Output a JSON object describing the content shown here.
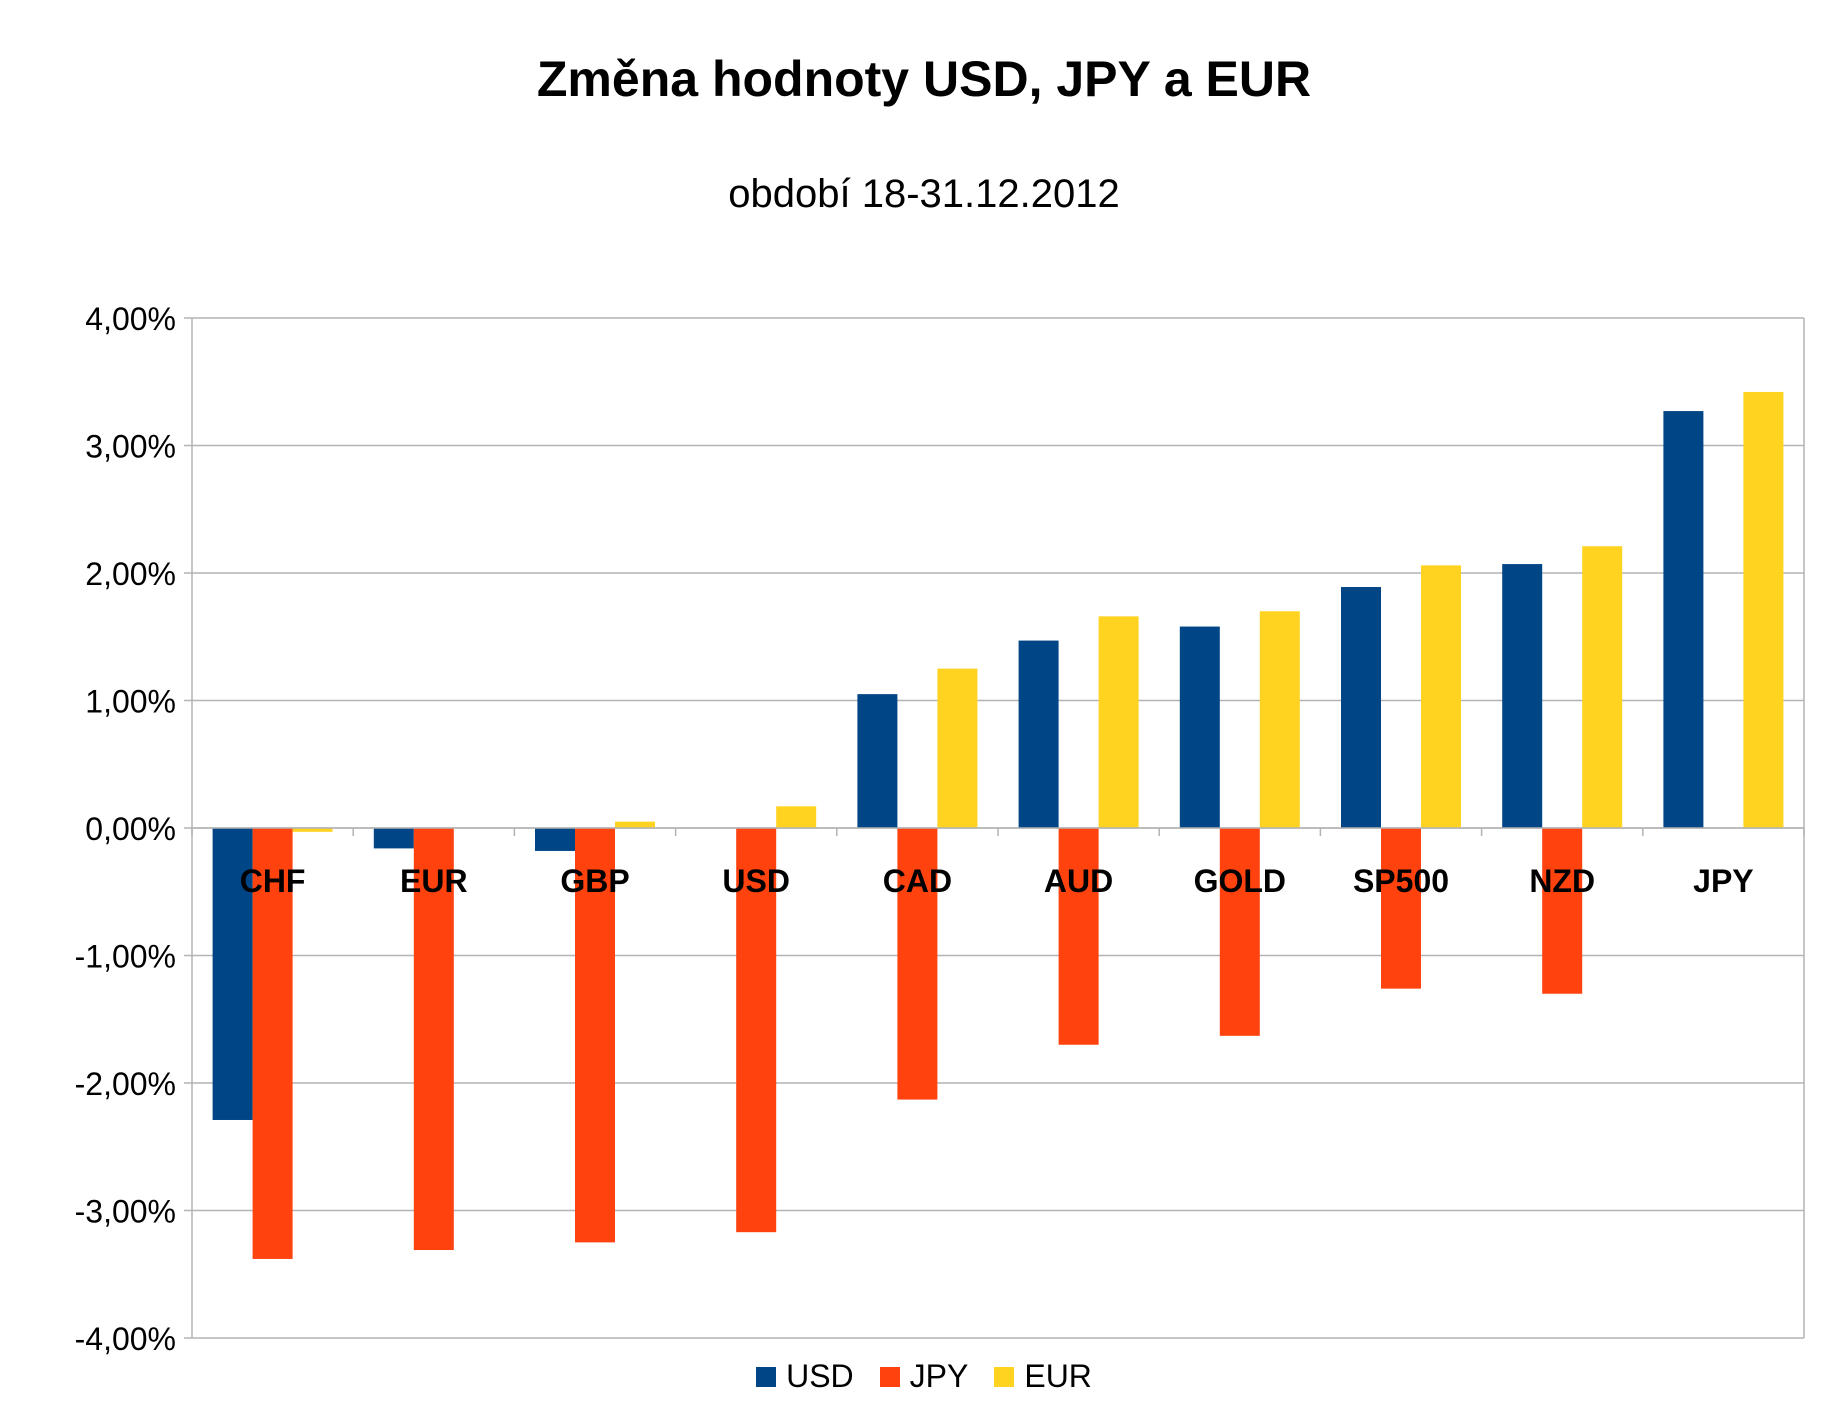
{
  "chart_data": {
    "type": "bar",
    "title": "Změna hodnoty USD, JPY a EUR",
    "subtitle": "období 18-31.12.2012",
    "xlabel": "",
    "ylabel": "",
    "ylim": [
      -4,
      4
    ],
    "yticks": [
      4,
      3,
      2,
      1,
      0,
      -1,
      -2,
      -3,
      -4
    ],
    "ytick_labels": [
      "4,00%",
      "3,00%",
      "2,00%",
      "1,00%",
      "0,00%",
      "-1,00%",
      "-2,00%",
      "-3,00%",
      "-4,00%"
    ],
    "grid": true,
    "legend_position": "bottom",
    "categories": [
      "CHF",
      "EUR",
      "GBP",
      "USD",
      "CAD",
      "AUD",
      "GOLD",
      "SP500",
      "NZD",
      "JPY"
    ],
    "series": [
      {
        "name": "USD",
        "color": "#004586",
        "values": [
          -2.29,
          -0.16,
          -0.18,
          null,
          1.05,
          1.47,
          1.58,
          1.89,
          2.07,
          3.27
        ]
      },
      {
        "name": "JPY",
        "color": "#ff420e",
        "values": [
          -3.38,
          -3.31,
          -3.25,
          -3.17,
          -2.13,
          -1.7,
          -1.63,
          -1.26,
          -1.3,
          null
        ]
      },
      {
        "name": "EUR",
        "color": "#ffd320",
        "values": [
          -0.03,
          null,
          0.05,
          0.17,
          1.25,
          1.66,
          1.7,
          2.06,
          2.21,
          3.42
        ]
      }
    ]
  }
}
